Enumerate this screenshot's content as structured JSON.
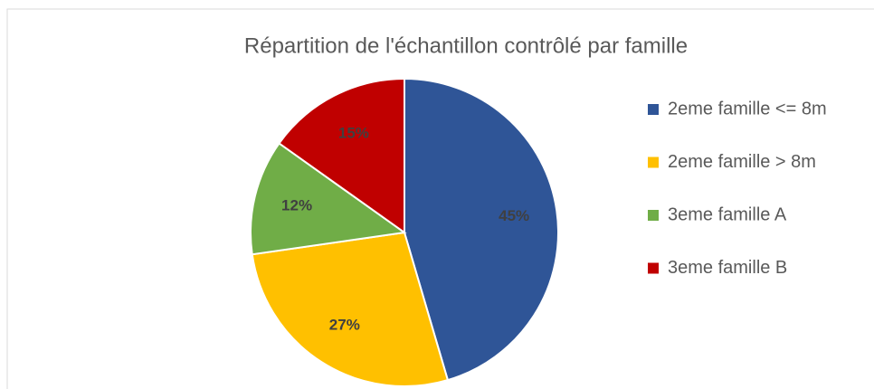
{
  "chart_data": {
    "type": "pie",
    "title": "Répartition de l'échantillon contrôlé par famille",
    "categories": [
      "2eme famille <= 8m",
      "2eme famille > 8m",
      "3eme famille A",
      "3eme famille B"
    ],
    "values": [
      45,
      27,
      12,
      15
    ],
    "value_labels": [
      "45%",
      "27%",
      "12%",
      "15%"
    ],
    "colors": [
      "#2f5597",
      "#ffc000",
      "#70ad47",
      "#c00000"
    ],
    "legend": "right"
  }
}
